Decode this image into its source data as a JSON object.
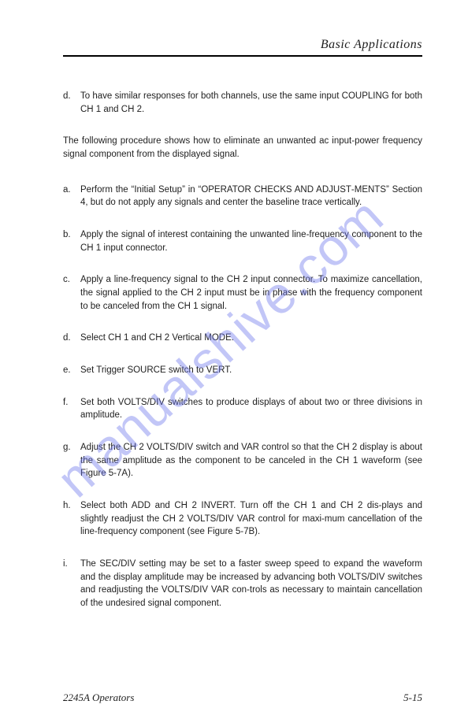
{
  "header": {
    "title": "Basic Applications"
  },
  "watermark": {
    "text": "manualshive.com",
    "color": "rgba(110,120,236,0.42)"
  },
  "upper_items": [
    {
      "marker": "d.",
      "text": "To have similar responses for both channels, use the same input COUPLING for both CH 1 and CH 2."
    }
  ],
  "intro": "The following procedure shows how to eliminate an unwanted ac input-power frequency signal component from the displayed signal.",
  "items": [
    {
      "marker": "a.",
      "text": "Perform the “Initial Setup” in “OPERATOR CHECKS AND ADJUST‐MENTS” Section 4, but do not apply any signals and center the baseline trace vertically."
    },
    {
      "marker": "b.",
      "text": "Apply the signal of interest containing the unwanted line-frequency component to the CH 1 input connector."
    },
    {
      "marker": "c.",
      "text": "Apply a line-frequency signal to the CH 2 input connector. To maximize cancellation, the signal applied to the CH 2 input must be in phase with the frequency component to be canceled from the CH 1 signal."
    },
    {
      "marker": "d.",
      "text": "Select CH 1 and CH 2 Vertical MODE."
    },
    {
      "marker": "e.",
      "text": "Set Trigger SOURCE switch to VERT."
    },
    {
      "marker": "f.",
      "text": "Set both VOLTS/DIV switches to produce displays of about two or three divisions in amplitude."
    },
    {
      "marker": "g.",
      "text": "Adjust the CH 2 VOLTS/DIV switch and VAR control so that the CH 2 display is about the same amplitude as the component to be canceled in the CH 1 waveform (see Figure 5-7A)."
    },
    {
      "marker": "h.",
      "text": "Select both ADD and CH 2 INVERT. Turn off the CH 1 and CH 2 dis‐plays and slightly readjust the CH 2 VOLTS/DIV VAR control for maxi‐mum cancellation of the line-frequency component (see Figure 5-7B)."
    },
    {
      "marker": "i.",
      "text": "The SEC/DIV setting may be set to a faster sweep speed to expand the waveform and the display amplitude may be increased by advancing both VOLTS/DIV switches and readjusting the VOLTS/DIV VAR con‐trols as necessary to maintain cancellation of the undesired signal component."
    }
  ],
  "footer": {
    "left": "2245A Operators",
    "right": "5-15"
  }
}
